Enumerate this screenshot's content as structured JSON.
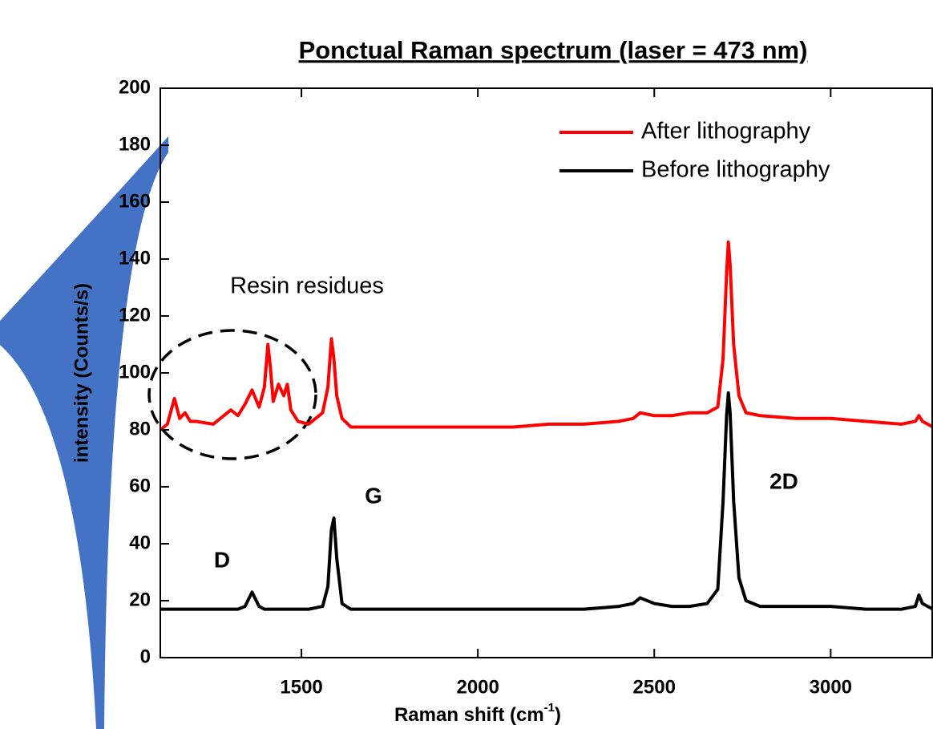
{
  "chart_data": {
    "type": "line",
    "title": "Ponctual Raman spectrum (laser = 473 nm)",
    "x_label": [
      "Raman shift (cm",
      "-1",
      ")"
    ],
    "y_label": "intensity (Counts/s)",
    "annotations": [
      "Resin residues",
      "D",
      "G",
      "2D"
    ],
    "x": [
      1100,
      1120,
      1140,
      1155,
      1170,
      1185,
      1200,
      1250,
      1300,
      1320,
      1340,
      1360,
      1380,
      1395,
      1405,
      1412,
      1420,
      1435,
      1450,
      1460,
      1470,
      1490,
      1520,
      1560,
      1575,
      1585,
      1592,
      1600,
      1615,
      1640,
      1700,
      1800,
      1900,
      2000,
      2100,
      2200,
      2300,
      2400,
      2440,
      2460,
      2500,
      2550,
      2600,
      2650,
      2680,
      2695,
      2705,
      2710,
      2715,
      2725,
      2740,
      2760,
      2800,
      2900,
      3000,
      3100,
      3200,
      3240,
      3250,
      3260,
      3290
    ],
    "series": [
      {
        "name": "After lithography",
        "color": "#ff0000",
        "values": [
          80,
          82,
          91,
          84,
          86,
          83,
          83,
          82,
          87,
          85,
          89,
          94,
          88,
          95,
          110,
          102,
          90,
          96,
          92,
          96,
          87,
          83,
          82,
          86,
          95,
          112,
          105,
          92,
          84,
          81,
          81,
          81,
          81,
          81,
          81,
          82,
          82,
          83,
          84,
          86,
          85,
          85,
          86,
          86,
          88,
          105,
          135,
          146,
          138,
          110,
          92,
          86,
          85,
          84,
          84,
          83,
          82,
          83,
          85,
          83,
          81
        ]
      },
      {
        "name": "Before lithography",
        "color": "#000000",
        "values": [
          17,
          17,
          17,
          17,
          17,
          17,
          17,
          17,
          17,
          17,
          18,
          23,
          18,
          17,
          17,
          17,
          17,
          17,
          17,
          17,
          17,
          17,
          17,
          18,
          25,
          45,
          49,
          35,
          19,
          17,
          17,
          17,
          17,
          17,
          17,
          17,
          17,
          18,
          19,
          21,
          19,
          18,
          18,
          19,
          24,
          55,
          85,
          93,
          86,
          55,
          28,
          20,
          18,
          18,
          18,
          17,
          17,
          18,
          22,
          19,
          17
        ]
      }
    ],
    "xlim": [
      1100,
      3290
    ],
    "ylim": [
      0,
      200
    ],
    "xticks": [
      1500,
      2000,
      2500,
      3000
    ],
    "yticks": [
      0,
      20,
      40,
      60,
      80,
      100,
      120,
      140,
      160,
      180,
      200
    ],
    "legend": "upper right"
  }
}
